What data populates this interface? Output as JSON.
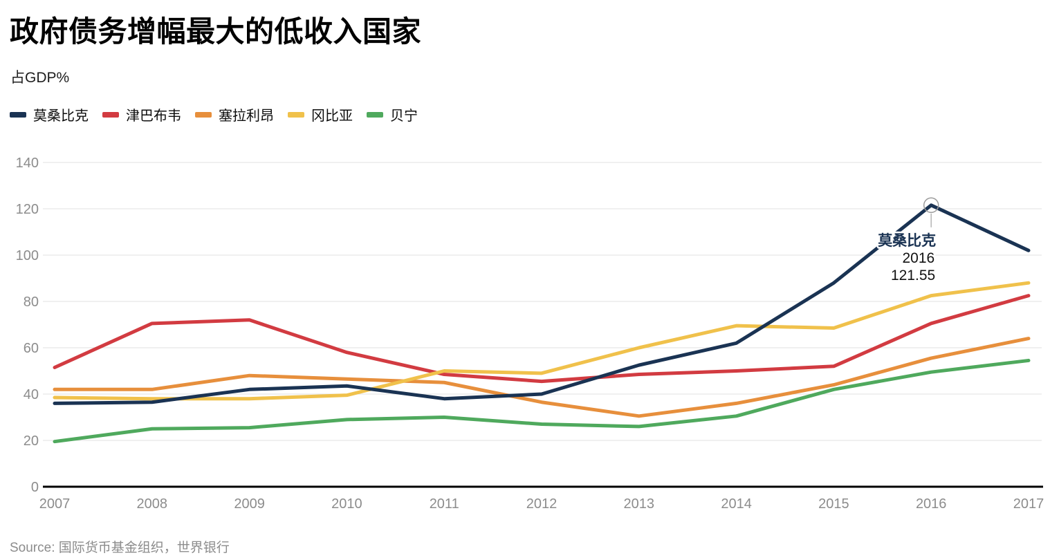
{
  "title": "政府债务增幅最大的低收入国家",
  "subtitle": "占GDP%",
  "source": "Source: 国际货币基金组织，世界银行",
  "chart_data": {
    "type": "line",
    "x": [
      2007,
      2008,
      2009,
      2010,
      2011,
      2012,
      2013,
      2014,
      2015,
      2016,
      2017
    ],
    "xlabel": "",
    "ylabel": "占GDP%",
    "ylim": [
      0,
      140
    ],
    "yticks": [
      0,
      20,
      40,
      60,
      80,
      100,
      120,
      140
    ],
    "grid": "horizontal",
    "legend_position": "top-left",
    "series": [
      {
        "name": "莫桑比克",
        "color": "#1a3353",
        "values": [
          36,
          36.5,
          42,
          43.5,
          38,
          40,
          52.5,
          62,
          88,
          121.55,
          102
        ]
      },
      {
        "name": "津巴布韦",
        "color": "#d23b41",
        "values": [
          51.5,
          70.5,
          72,
          58,
          48.5,
          45.5,
          48.5,
          50,
          52,
          70.5,
          82.5
        ]
      },
      {
        "name": "塞拉利昂",
        "color": "#e78f3c",
        "values": [
          42,
          42,
          48,
          46.5,
          45,
          36.5,
          30.5,
          36,
          44,
          55.5,
          64
        ]
      },
      {
        "name": "冈比亚",
        "color": "#f0c14b",
        "values": [
          38.5,
          38,
          38,
          39.5,
          50,
          49,
          60,
          69.5,
          68.5,
          82.5,
          88
        ]
      },
      {
        "name": "贝宁",
        "color": "#4fa95d",
        "values": [
          19.5,
          25,
          25.5,
          29,
          30,
          27,
          26,
          30.5,
          42,
          49.5,
          54.5
        ]
      }
    ],
    "annotation": {
      "series": "莫桑比克",
      "x": 2016,
      "value": 121.55,
      "label_series": "莫桑比克",
      "label_year": "2016",
      "label_value": "121.55"
    }
  }
}
